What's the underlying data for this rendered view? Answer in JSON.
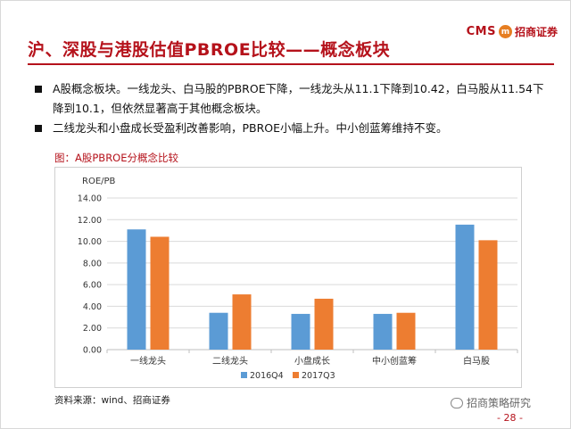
{
  "header": {
    "logo_cms": "CMS",
    "logo_mark": "m",
    "logo_cn": "招商证券",
    "title": "沪、深股与港股估值PBROE比较——概念板块"
  },
  "bullets": [
    "A股概念板块。一线龙头、白马股的PBROE下降，一线龙头从11.1下降到10.42，白马股从11.54下降到10.1，但依然显著高于其他概念板块。",
    "二线龙头和小盘成长受盈利改善影响，PBROE小幅上升。中小创蓝筹维持不变。"
  ],
  "figure_label": "图：A股PBROE分概念比较",
  "source": "资料来源：wind、招商证券",
  "watermark": "招商策略研究",
  "page_number": "- 28 -",
  "colors": {
    "brand": "#b5121b",
    "series_2016Q4": "#5b9bd5",
    "series_2017Q3": "#ed7d31",
    "grid": "#d9d9d9"
  },
  "chart_data": {
    "type": "bar",
    "title": "",
    "ylabel": "ROE/PB",
    "xlabel": "",
    "ylim": [
      0,
      14
    ],
    "yticks": [
      "0.00",
      "2.00",
      "4.00",
      "6.00",
      "8.00",
      "10.00",
      "12.00",
      "14.00"
    ],
    "categories": [
      "一线龙头",
      "二线龙头",
      "小盘成长",
      "中小创蓝筹",
      "白马股"
    ],
    "series": [
      {
        "name": "2016Q4",
        "values": [
          11.1,
          3.4,
          3.3,
          3.3,
          11.54
        ]
      },
      {
        "name": "2017Q3",
        "values": [
          10.42,
          5.1,
          4.7,
          3.4,
          10.1
        ]
      }
    ],
    "grid": true,
    "legend": "bottom"
  }
}
